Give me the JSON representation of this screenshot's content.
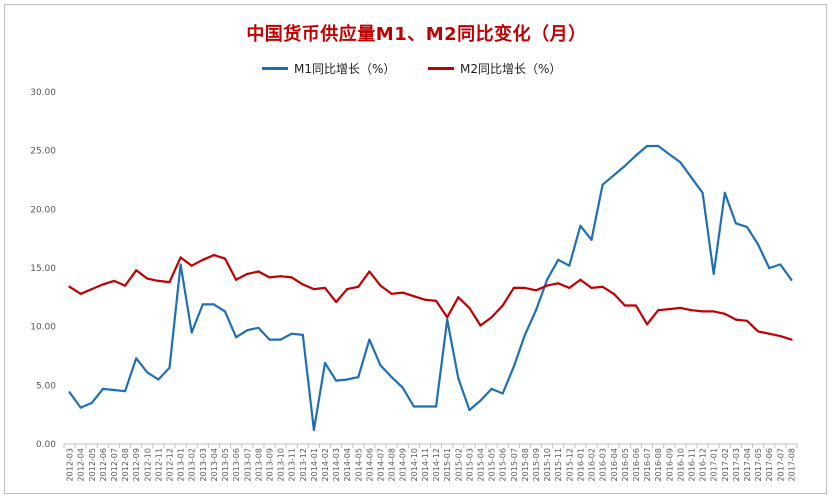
{
  "chart_data": {
    "type": "line",
    "title": "中国货币供应量M1、M2同比变化（月）",
    "xlabel": "",
    "ylabel": "",
    "ylim": [
      0,
      30
    ],
    "yticks": [
      "30.00",
      "25.00",
      "20.00",
      "15.00",
      "10.00",
      "5.00",
      "0.00"
    ],
    "grid": false,
    "legend_position": "top-center",
    "categories": [
      "2012-03",
      "2012-04",
      "2012-05",
      "2012-06",
      "2012-07",
      "2012-08",
      "2012-09",
      "2012-10",
      "2012-11",
      "2012-12",
      "2013-01",
      "2013-02",
      "2013-03",
      "2013-04",
      "2013-05",
      "2013-06",
      "2013-07",
      "2013-08",
      "2013-09",
      "2013-10",
      "2013-11",
      "2013-12",
      "2014-01",
      "2014-02",
      "2014-03",
      "2014-04",
      "2014-05",
      "2014-06",
      "2014-07",
      "2014-08",
      "2014-09",
      "2014-10",
      "2014-11",
      "2014-12",
      "2015-01",
      "2015-02",
      "2015-03",
      "2015-04",
      "2015-05",
      "2015-06",
      "2015-07",
      "2015-08",
      "2015-09",
      "2015-10",
      "2015-11",
      "2015-12",
      "2016-01",
      "2016-02",
      "2016-03",
      "2016-04",
      "2016-05",
      "2016-06",
      "2016-07",
      "2016-08",
      "2016-09",
      "2016-10",
      "2016-11",
      "2016-12",
      "2017-01",
      "2017-02",
      "2017-03",
      "2017-04",
      "2017-05",
      "2017-06",
      "2017-07",
      "2017-08"
    ],
    "series": [
      {
        "name": "M1同比增长（%）",
        "color": "#1f6fb5",
        "values": [
          4.4,
          3.1,
          3.5,
          4.7,
          4.6,
          4.5,
          7.3,
          6.1,
          5.5,
          6.5,
          15.3,
          9.5,
          11.9,
          11.9,
          11.3,
          9.1,
          9.7,
          9.9,
          8.9,
          8.9,
          9.4,
          9.3,
          1.2,
          6.9,
          5.4,
          5.5,
          5.7,
          8.9,
          6.7,
          5.7,
          4.8,
          3.2,
          3.2,
          3.2,
          10.6,
          5.6,
          2.9,
          3.7,
          4.7,
          4.3,
          6.6,
          9.3,
          11.4,
          14.0,
          15.7,
          15.2,
          18.6,
          17.4,
          22.1,
          22.9,
          23.7,
          24.6,
          25.4,
          25.4,
          24.7,
          24.0,
          22.7,
          21.4,
          14.5,
          21.4,
          18.8,
          18.5,
          17.0,
          15.0,
          15.3,
          14.0
        ]
      },
      {
        "name": "M2同比增长（%）",
        "color": "#c00000",
        "values": [
          13.4,
          12.8,
          13.2,
          13.6,
          13.9,
          13.5,
          14.8,
          14.1,
          13.9,
          13.8,
          15.9,
          15.2,
          15.7,
          16.1,
          15.8,
          14.0,
          14.5,
          14.7,
          14.2,
          14.3,
          14.2,
          13.6,
          13.2,
          13.3,
          12.1,
          13.2,
          13.4,
          14.7,
          13.5,
          12.8,
          12.9,
          12.6,
          12.3,
          12.2,
          10.8,
          12.5,
          11.6,
          10.1,
          10.8,
          11.8,
          13.3,
          13.3,
          13.1,
          13.5,
          13.7,
          13.3,
          14.0,
          13.3,
          13.4,
          12.8,
          11.8,
          11.8,
          10.2,
          11.4,
          11.5,
          11.6,
          11.4,
          11.3,
          11.3,
          11.1,
          10.6,
          10.5,
          9.6,
          9.4,
          9.2,
          8.9
        ]
      }
    ]
  }
}
